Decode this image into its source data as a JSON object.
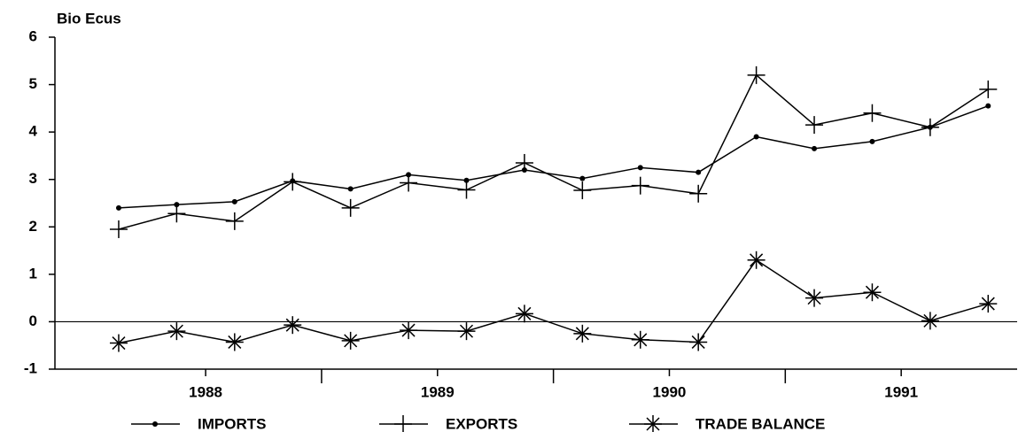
{
  "chart_data": {
    "type": "line",
    "ylabel": "Bio Ecus",
    "x": [
      1988.125,
      1988.375,
      1988.625,
      1988.875,
      1989.125,
      1989.375,
      1989.625,
      1989.875,
      1990.125,
      1990.375,
      1990.625,
      1990.875,
      1991.125,
      1991.375,
      1991.625,
      1991.875
    ],
    "series": [
      {
        "name": "IMPORTS",
        "color": "#000000",
        "marker": "dot",
        "values": [
          2.4,
          2.47,
          2.53,
          2.97,
          2.8,
          3.1,
          2.98,
          3.2,
          3.02,
          3.25,
          3.15,
          3.9,
          3.65,
          3.8,
          4.1,
          4.55
        ]
      },
      {
        "name": "EXPORTS",
        "color": "#000000",
        "marker": "plus",
        "values": [
          1.95,
          2.28,
          2.12,
          2.95,
          2.4,
          2.93,
          2.78,
          3.35,
          2.77,
          2.87,
          2.7,
          5.2,
          4.15,
          4.4,
          4.1,
          4.9
        ]
      },
      {
        "name": "TRADE BALANCE",
        "color": "#000000",
        "marker": "asterisk",
        "values": [
          -0.45,
          -0.2,
          -0.43,
          -0.07,
          -0.4,
          -0.18,
          -0.2,
          0.17,
          -0.25,
          -0.38,
          -0.43,
          1.3,
          0.5,
          0.62,
          0.02,
          0.38
        ]
      }
    ],
    "xlim": [
      1987.85,
      1992.0
    ],
    "xticks": [
      {
        "value": 1988.5,
        "label": "1988"
      },
      {
        "value": 1989.5,
        "label": "1989"
      },
      {
        "value": 1990.5,
        "label": "1990"
      },
      {
        "value": 1991.5,
        "label": "1991"
      }
    ],
    "xminorticks": [
      1989,
      1990,
      1991
    ],
    "ylim": [
      -1,
      6
    ],
    "yticks": [
      -1,
      0,
      1,
      2,
      3,
      4,
      5,
      6
    ],
    "zero_line": true,
    "legend": "bottom"
  }
}
